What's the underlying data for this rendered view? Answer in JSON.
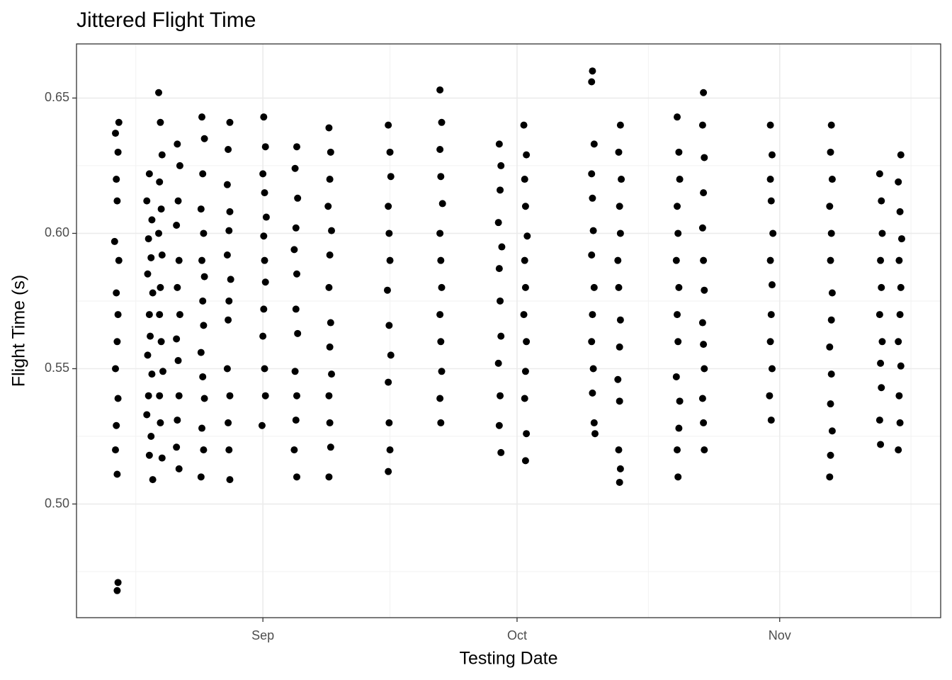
{
  "chart_data": {
    "type": "scatter",
    "title": "Jittered Flight Time",
    "x_label": "Testing Date",
    "y_label": "Flight Time (s)",
    "color": "#000000",
    "grid": true,
    "xlim": [
      -22,
      80
    ],
    "ylim": [
      0.458,
      0.67
    ],
    "xticks": [
      {
        "value": 0,
        "label": "Sep"
      },
      {
        "value": 30,
        "label": "Oct"
      },
      {
        "value": 61,
        "label": "Nov"
      }
    ],
    "yticks": [
      {
        "value": 0.5,
        "label": "0.50"
      },
      0.55,
      {
        "value": 0.6,
        "label": "0.60"
      },
      0.65
    ],
    "x": [
      -17.0,
      -17.4,
      -17.1,
      -17.3,
      -17.2,
      -17.5,
      -17.0,
      -17.3,
      -17.1,
      -17.2,
      -17.4,
      -17.1,
      -17.3,
      -17.4,
      -17.2,
      -17.1,
      -17.2,
      -13.4,
      -13.7,
      -13.1,
      -13.5,
      -13.2,
      -13.6,
      -13.0,
      -13.4,
      -13.3,
      -13.6,
      -13.1,
      -13.5,
      -13.7,
      -13.2,
      -13.4,
      -13.0,
      -12.3,
      -12.1,
      -11.9,
      -12.2,
      -12.0,
      -12.3,
      -11.9,
      -12.1,
      -12.2,
      -12.0,
      -11.8,
      -12.2,
      -12.1,
      -11.9,
      -10.1,
      -9.8,
      -10.0,
      -10.2,
      -9.9,
      -10.1,
      -9.8,
      -10.2,
      -10.0,
      -9.9,
      -10.1,
      -10.2,
      -9.9,
      -7.2,
      -6.9,
      -7.1,
      -7.3,
      -7.0,
      -7.2,
      -6.9,
      -7.1,
      -7.0,
      -7.3,
      -7.1,
      -6.9,
      -7.2,
      -7.0,
      -7.3,
      -3.9,
      -4.1,
      -4.2,
      -3.9,
      -4.0,
      -4.2,
      -3.8,
      -4.0,
      -4.1,
      -4.2,
      -3.9,
      -4.1,
      -4.0,
      -3.9,
      0.1,
      0.3,
      0.0,
      0.2,
      0.4,
      0.1,
      0.2,
      0.3,
      0.1,
      0.0,
      0.2,
      0.3,
      -0.1,
      4.0,
      3.8,
      4.1,
      3.9,
      3.7,
      4.0,
      3.9,
      4.1,
      3.8,
      4.0,
      3.9,
      3.7,
      4.0,
      7.8,
      8.0,
      7.9,
      7.7,
      8.1,
      7.9,
      7.8,
      8.0,
      7.9,
      8.1,
      7.8,
      7.9,
      8.0,
      7.8,
      14.8,
      15.0,
      15.1,
      14.8,
      14.9,
      15.0,
      14.7,
      14.9,
      15.1,
      14.8,
      14.9,
      15.0,
      14.8,
      20.9,
      21.1,
      20.9,
      21.0,
      21.2,
      20.9,
      21.0,
      21.1,
      20.9,
      21.0,
      21.1,
      20.9,
      21.0,
      27.9,
      28.1,
      28.0,
      27.8,
      28.2,
      27.9,
      28.0,
      28.1,
      27.8,
      28.0,
      27.9,
      28.1,
      30.8,
      31.1,
      30.9,
      31.0,
      31.2,
      30.9,
      31.0,
      30.8,
      31.1,
      31.0,
      30.9,
      31.1,
      31.0,
      38.9,
      38.8,
      39.1,
      38.8,
      38.9,
      39.0,
      38.8,
      39.1,
      38.9,
      38.8,
      39.0,
      38.9,
      39.1,
      39.2,
      42.2,
      42.0,
      42.3,
      42.1,
      42.2,
      41.9,
      42.0,
      42.2,
      42.1,
      41.9,
      42.1,
      42.0,
      42.2,
      42.1,
      48.9,
      49.1,
      49.2,
      48.9,
      49.0,
      48.8,
      49.1,
      48.9,
      49.0,
      48.8,
      49.2,
      49.1,
      48.9,
      49.0,
      52.0,
      51.9,
      52.1,
      52.0,
      51.9,
      52.0,
      52.1,
      51.9,
      52.0,
      52.1,
      51.9,
      52.0,
      52.1,
      59.9,
      60.1,
      59.9,
      60.0,
      60.2,
      59.9,
      60.1,
      60.0,
      59.9,
      60.1,
      59.8,
      60.0,
      67.1,
      67.0,
      67.2,
      66.9,
      67.1,
      67.0,
      67.2,
      67.1,
      66.9,
      67.1,
      67.0,
      67.2,
      67.0,
      66.9,
      72.8,
      73.0,
      73.1,
      72.9,
      73.0,
      72.8,
      73.1,
      72.9,
      73.0,
      72.8,
      72.9,
      75.3,
      75.0,
      75.2,
      75.4,
      75.1,
      75.3,
      75.2,
      75.0,
      75.3,
      75.1,
      75.2,
      75.0
    ],
    "values": [
      0.641,
      0.637,
      0.63,
      0.62,
      0.612,
      0.597,
      0.59,
      0.578,
      0.57,
      0.56,
      0.55,
      0.539,
      0.529,
      0.52,
      0.511,
      0.471,
      0.468,
      0.622,
      0.612,
      0.605,
      0.598,
      0.591,
      0.585,
      0.578,
      0.57,
      0.562,
      0.555,
      0.548,
      0.54,
      0.533,
      0.525,
      0.518,
      0.509,
      0.652,
      0.641,
      0.629,
      0.619,
      0.609,
      0.6,
      0.592,
      0.58,
      0.57,
      0.56,
      0.549,
      0.54,
      0.53,
      0.517,
      0.633,
      0.625,
      0.612,
      0.603,
      0.59,
      0.58,
      0.57,
      0.561,
      0.553,
      0.54,
      0.531,
      0.521,
      0.513,
      0.643,
      0.635,
      0.622,
      0.609,
      0.6,
      0.59,
      0.584,
      0.575,
      0.566,
      0.556,
      0.547,
      0.539,
      0.528,
      0.52,
      0.51,
      0.641,
      0.631,
      0.618,
      0.608,
      0.601,
      0.592,
      0.583,
      0.575,
      0.568,
      0.55,
      0.54,
      0.53,
      0.52,
      0.509,
      0.643,
      0.632,
      0.622,
      0.615,
      0.606,
      0.599,
      0.59,
      0.582,
      0.572,
      0.562,
      0.55,
      0.54,
      0.529,
      0.632,
      0.624,
      0.613,
      0.602,
      0.594,
      0.585,
      0.572,
      0.563,
      0.549,
      0.54,
      0.531,
      0.52,
      0.51,
      0.639,
      0.63,
      0.62,
      0.61,
      0.601,
      0.592,
      0.58,
      0.567,
      0.558,
      0.548,
      0.54,
      0.53,
      0.521,
      0.51,
      0.64,
      0.63,
      0.621,
      0.61,
      0.6,
      0.59,
      0.579,
      0.566,
      0.555,
      0.545,
      0.53,
      0.52,
      0.512,
      0.653,
      0.641,
      0.631,
      0.621,
      0.611,
      0.6,
      0.59,
      0.58,
      0.57,
      0.56,
      0.549,
      0.539,
      0.53,
      0.633,
      0.625,
      0.616,
      0.604,
      0.595,
      0.587,
      0.575,
      0.562,
      0.552,
      0.54,
      0.529,
      0.519,
      0.64,
      0.629,
      0.62,
      0.61,
      0.599,
      0.59,
      0.58,
      0.57,
      0.56,
      0.549,
      0.539,
      0.526,
      0.516,
      0.66,
      0.656,
      0.633,
      0.622,
      0.613,
      0.601,
      0.592,
      0.58,
      0.57,
      0.56,
      0.55,
      0.541,
      0.53,
      0.526,
      0.64,
      0.63,
      0.62,
      0.61,
      0.6,
      0.59,
      0.58,
      0.568,
      0.558,
      0.546,
      0.538,
      0.52,
      0.513,
      0.508,
      0.643,
      0.63,
      0.62,
      0.61,
      0.6,
      0.59,
      0.58,
      0.57,
      0.56,
      0.547,
      0.538,
      0.528,
      0.52,
      0.51,
      0.652,
      0.64,
      0.628,
      0.615,
      0.602,
      0.59,
      0.579,
      0.567,
      0.559,
      0.55,
      0.539,
      0.53,
      0.52,
      0.64,
      0.629,
      0.62,
      0.612,
      0.6,
      0.59,
      0.581,
      0.57,
      0.56,
      0.55,
      0.54,
      0.531,
      0.64,
      0.63,
      0.62,
      0.61,
      0.6,
      0.59,
      0.578,
      0.568,
      0.558,
      0.548,
      0.537,
      0.527,
      0.518,
      0.51,
      0.622,
      0.612,
      0.6,
      0.59,
      0.58,
      0.57,
      0.56,
      0.552,
      0.543,
      0.531,
      0.522,
      0.629,
      0.619,
      0.608,
      0.598,
      0.59,
      0.58,
      0.57,
      0.56,
      0.551,
      0.54,
      0.53,
      0.52
    ]
  }
}
